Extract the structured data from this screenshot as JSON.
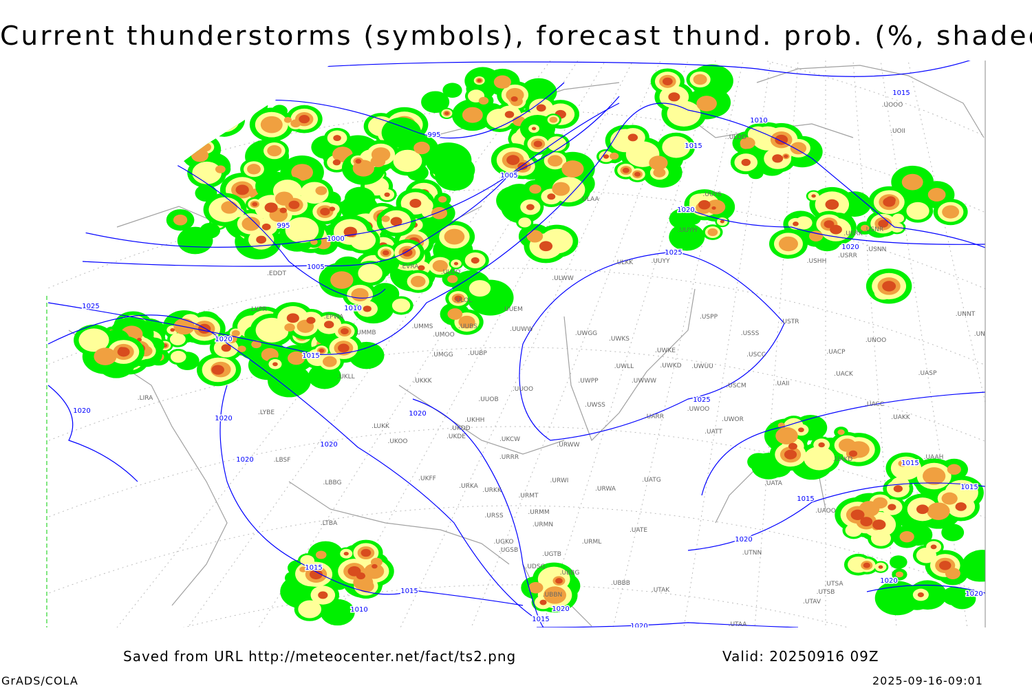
{
  "title": "Current thunderstorms (symbols), forecast thund. prob. (%, shaded)",
  "footer": {
    "saved_from": "Saved from URL http://meteocenter.net/fact/ts2.png",
    "valid": "Valid: 20250916 09Z",
    "software": "GrADS/COLA",
    "timestamp": "2025-09-16-09:01"
  },
  "shading_colors": [
    "#00f000",
    "#ffff99",
    "#f0a040",
    "#d84c1e"
  ],
  "isobar_color": "#0000ff",
  "coast_color": "#a0a0a0",
  "isobar_labels": [
    "995",
    "995",
    "1000",
    "1005",
    "1005",
    "1010",
    "1010",
    "1010",
    "1015",
    "1015",
    "1015",
    "1015",
    "1015",
    "1015",
    "1015",
    "1015",
    "1015",
    "1020",
    "1020",
    "1020",
    "1020",
    "1020",
    "1020",
    "1020",
    "1020",
    "1020",
    "1020",
    "1020",
    "1020",
    "1020",
    "1025",
    "1025",
    "1025"
  ],
  "stations": [
    "EDDT",
    "LKPR",
    "EPWA",
    "UMMS",
    "UMOO",
    "UUBS",
    "UUEM",
    "UUWW",
    "UWGG",
    "UWKS",
    "USSS",
    "USTR",
    "USPP",
    "UNNT",
    "UNBB",
    "UNOO",
    "UWKE",
    "UWKD",
    "UWUU",
    "USCC",
    "UACP",
    "UACK",
    "UASP",
    "UMGG",
    "UUBP",
    "UKLL",
    "UKKK",
    "UUOO",
    "UWPP",
    "UWWW",
    "UWLL",
    "USCM",
    "UAII",
    "UACC",
    "UAKK",
    "LIRA",
    "LYBE",
    "LUKK",
    "UKOO",
    "UKHH",
    "UKDD",
    "UKDE",
    "UUOB",
    "UWSS",
    "URWW",
    "UKCW",
    "URRR",
    "UARR",
    "UWOO",
    "UWOR",
    "UATT",
    "UAKD",
    "UAAH",
    "LBSF",
    "LBBG",
    "UKFF",
    "URKA",
    "URKK",
    "URWI",
    "UATG",
    "URMT",
    "URWA",
    "URMM",
    "URSS",
    "URMN",
    "UATE",
    "UAOO",
    "UATA",
    "LTBA",
    "UGKO",
    "URML",
    "UGSB",
    "UGTB",
    "UTNN",
    "UDSG",
    "UBBG",
    "UBBB",
    "UTAK",
    "UTSA",
    "UTSB",
    "UTAV",
    "UBBN",
    "UTAA",
    "ULAA",
    "UUYS",
    "UUYH",
    "ULDD",
    "UUYY",
    "ULKK",
    "ULWW",
    "ULOO",
    "ULOL",
    "UOOO",
    "UOII",
    "USNR",
    "USRK",
    "USRR",
    "USNN",
    "USHH",
    "UMMB",
    "EVRA"
  ]
}
